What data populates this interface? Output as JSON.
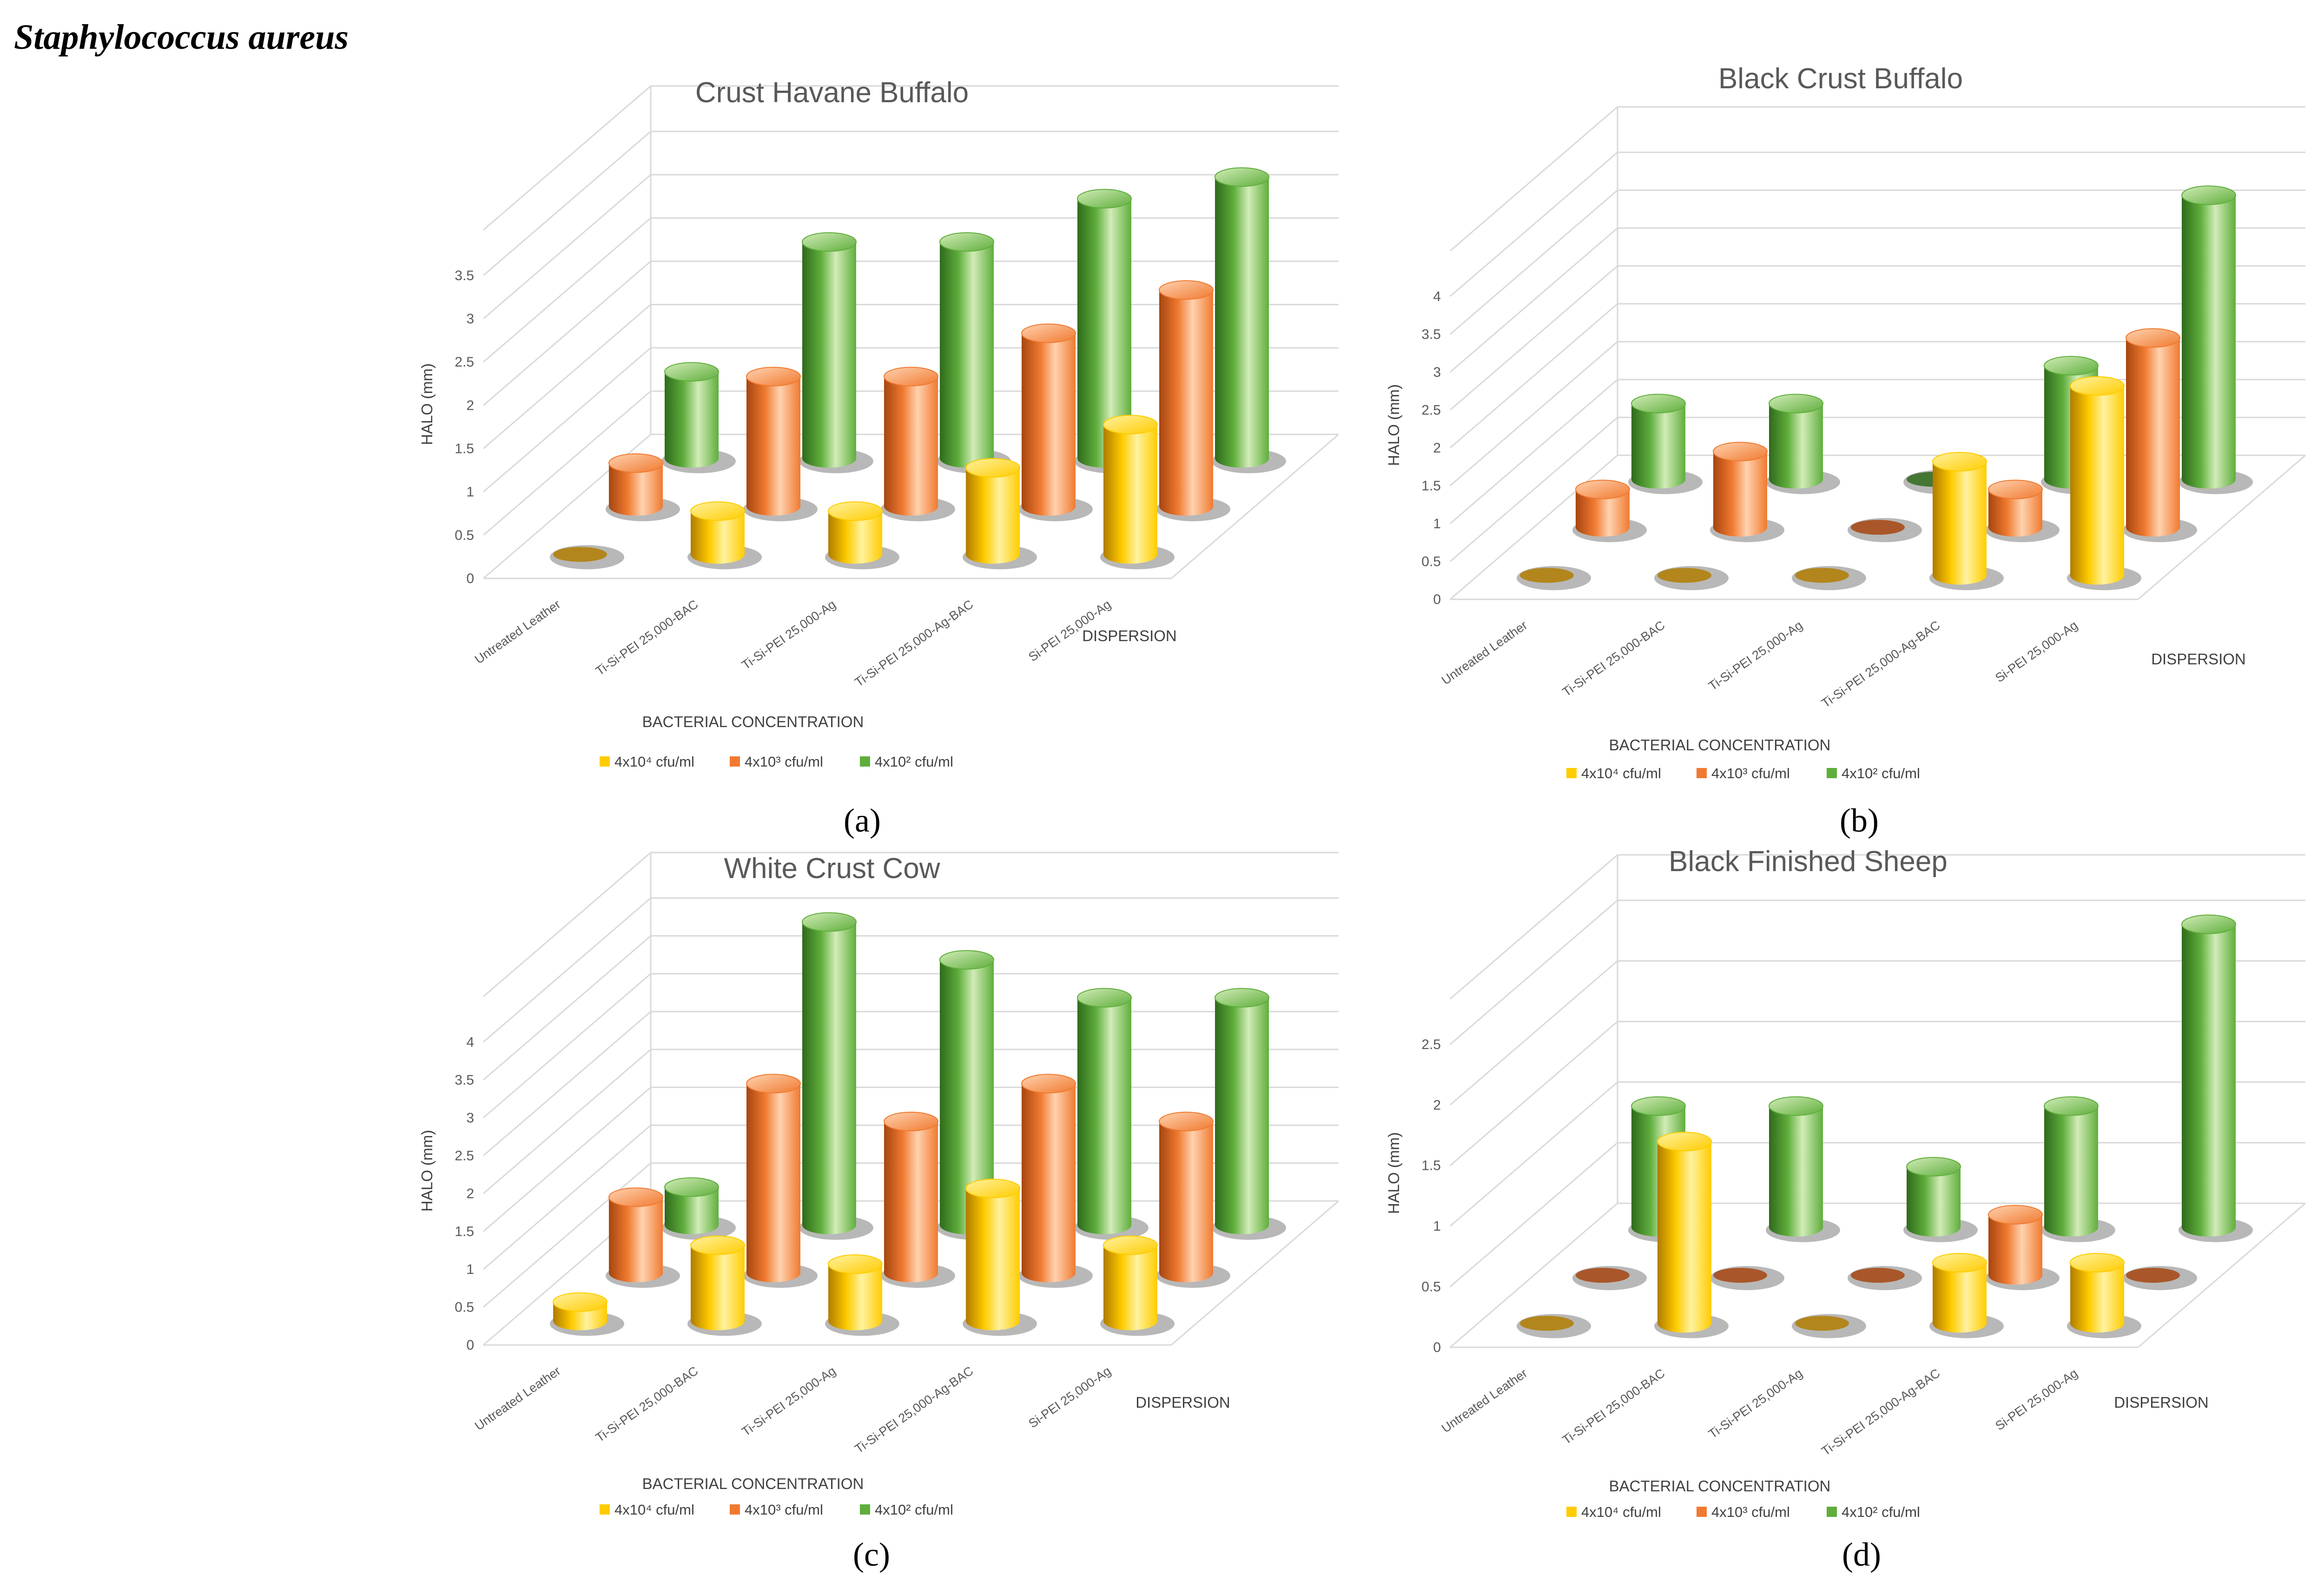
{
  "figure": {
    "header": "Staphylococcus aureus",
    "legend_labels": [
      "4x10⁴ cfu/ml",
      "4x10³ cfu/ml",
      "4x10² cfu/ml"
    ],
    "colors": {
      "yellow": [
        "#fff2a0",
        "#ffcc00",
        "#b07c00"
      ],
      "orange": [
        "#ffd2b0",
        "#f07a30",
        "#a64510"
      ],
      "green": [
        "#d2ecb8",
        "#5fae3c",
        "#2f6a1c"
      ],
      "grid": "#d9d9d9",
      "text": "#595959"
    }
  },
  "chart_data": [
    {
      "type": "bar",
      "caption": "(a)",
      "title": "Crust Havane Buffalo",
      "ylabel": "HALO (mm)",
      "xlabel": "BACTERIAL CONCENTRATION",
      "zlabel": "DISPERSION",
      "categories": [
        "Untreated Leather",
        "Ti-Si-PEI 25,000-BAC",
        "Ti-Si-PEI 25,000-Ag",
        "Ti-Si-PEI 25,000-Ag-BAC",
        "Si-PEI 25,000-Ag"
      ],
      "yticks": [
        "0",
        "0.5",
        "1",
        "1.5",
        "2",
        "2.5",
        "3",
        "3.5"
      ],
      "ylim": [
        0,
        3.5
      ],
      "series": [
        {
          "name": "4x10⁴ cfu/ml",
          "values": [
            0,
            0.5,
            0.5,
            1,
            1.5
          ]
        },
        {
          "name": "4x10³ cfu/ml",
          "values": [
            0.5,
            1.5,
            1.5,
            2,
            2.5
          ]
        },
        {
          "name": "4x10² cfu/ml",
          "values": [
            1,
            2.5,
            2.5,
            3,
            3.25
          ]
        }
      ]
    },
    {
      "type": "bar",
      "caption": "(b)",
      "title": "Black Crust Buffalo",
      "ylabel": "HALO (mm)",
      "xlabel": "BACTERIAL CONCENTRATION",
      "zlabel": "DISPERSION",
      "categories": [
        "Untreated Leather",
        "Ti-Si-PEI 25,000-BAC",
        "Ti-Si-PEI 25,000-Ag",
        "Ti-Si-PEI 25,000-Ag-BAC",
        "Si-PEI 25,000-Ag"
      ],
      "yticks": [
        "0",
        "0.5",
        "1",
        "1.5",
        "2",
        "2.5",
        "3",
        "3.5",
        "4"
      ],
      "ylim": [
        0,
        4
      ],
      "series": [
        {
          "name": "4x10⁴ cfu/ml",
          "values": [
            0,
            0,
            0,
            1.5,
            2.5
          ]
        },
        {
          "name": "4x10³ cfu/ml",
          "values": [
            0.5,
            1,
            0,
            0.5,
            2.5
          ]
        },
        {
          "name": "4x10² cfu/ml",
          "values": [
            1,
            1,
            0,
            1.5,
            3.75
          ]
        }
      ]
    },
    {
      "type": "bar",
      "caption": "(c)",
      "title": "White Crust Cow",
      "ylabel": "HALO (mm)",
      "xlabel": "BACTERIAL CONCENTRATION",
      "zlabel": "DISPERSION",
      "categories": [
        "Untreated Leather",
        "Ti-Si-PEI 25,000-BAC",
        "Ti-Si-PEI 25,000-Ag",
        "Ti-Si-PEI 25,000-Ag-BAC",
        "Si-PEI 25,000-Ag"
      ],
      "yticks": [
        "0",
        "0.5",
        "1",
        "1.5",
        "2",
        "2.5",
        "3",
        "3.5",
        "4"
      ],
      "ylim": [
        0,
        4
      ],
      "series": [
        {
          "name": "4x10⁴ cfu/ml",
          "values": [
            0.25,
            1,
            0.75,
            1.75,
            1
          ]
        },
        {
          "name": "4x10³ cfu/ml",
          "values": [
            1,
            2.5,
            2,
            2.5,
            2
          ]
        },
        {
          "name": "4x10² cfu/ml",
          "values": [
            0.5,
            4,
            3.5,
            3,
            3
          ]
        }
      ]
    },
    {
      "type": "bar",
      "caption": "(d)",
      "title": "Black Finished Sheep",
      "ylabel": "HALO (mm)",
      "xlabel": "BACTERIAL CONCENTRATION",
      "zlabel": "DISPERSION",
      "categories": [
        "Untreated Leather",
        "Ti-Si-PEI 25,000-BAC",
        "Ti-Si-PEI 25,000-Ag",
        "Ti-Si-PEI 25,000-Ag-BAC",
        "Si-PEI 25,000-Ag"
      ],
      "yticks": [
        "0",
        "0.5",
        "1",
        "1.5",
        "2",
        "2.5"
      ],
      "ylim": [
        0,
        2.5
      ],
      "series": [
        {
          "name": "4x10⁴ cfu/ml",
          "values": [
            0,
            1.5,
            0,
            0.5,
            0.5
          ]
        },
        {
          "name": "4x10³ cfu/ml",
          "values": [
            0,
            0,
            0,
            0.5,
            0
          ]
        },
        {
          "name": "4x10² cfu/ml",
          "values": [
            1,
            1,
            0.5,
            1,
            2.5
          ]
        }
      ]
    }
  ]
}
